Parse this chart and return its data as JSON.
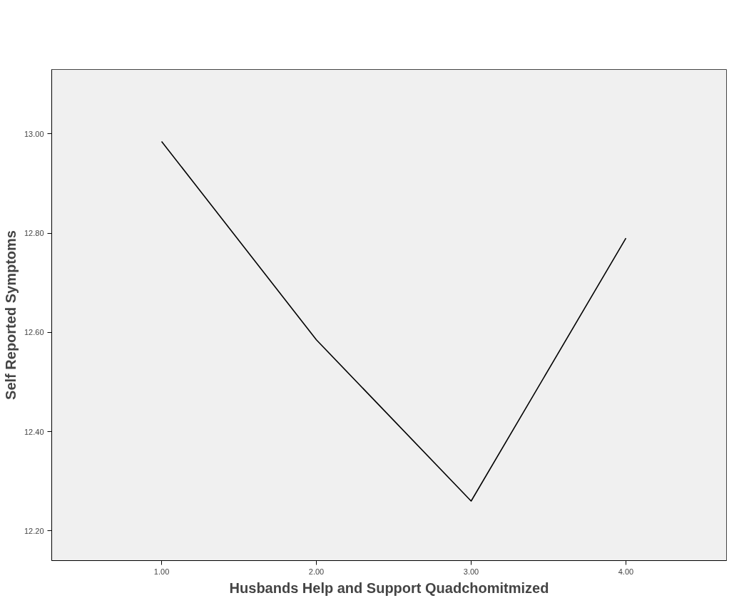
{
  "chart_data": {
    "type": "line",
    "xlabel": "Husbands Help and Support Quadchomitmized",
    "ylabel": "Self Reported Symptoms",
    "x": [
      1,
      2,
      3,
      4
    ],
    "series": [
      {
        "color": "#000000",
        "values": [
          12.985,
          12.585,
          12.26,
          12.79
        ]
      }
    ],
    "xlim": [
      0.29,
      4.65
    ],
    "ylim": [
      12.14,
      13.13
    ],
    "xticks": [
      {
        "value": 1,
        "label": "1.00"
      },
      {
        "value": 2,
        "label": "2.00"
      },
      {
        "value": 3,
        "label": "3.00"
      },
      {
        "value": 4,
        "label": "4.00"
      }
    ],
    "yticks": [
      {
        "value": 12.2,
        "label": "12.20"
      },
      {
        "value": 12.4,
        "label": "12.40"
      },
      {
        "value": 12.6,
        "label": "12.60"
      },
      {
        "value": 12.8,
        "label": "12.80"
      },
      {
        "value": 13.0,
        "label": "13.00"
      }
    ],
    "grid": false,
    "marker": "none",
    "line_style": "solid"
  }
}
